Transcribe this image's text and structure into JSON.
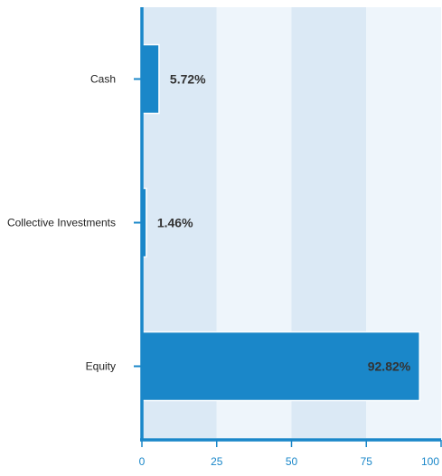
{
  "chart_data": {
    "type": "bar",
    "orientation": "horizontal",
    "categories": [
      "Cash",
      "Collective Investments",
      "Equity"
    ],
    "values": [
      5.72,
      1.46,
      92.82
    ],
    "data_labels": [
      "5.72%",
      "1.46%",
      "92.82%"
    ],
    "xlim": [
      0,
      100
    ],
    "x_ticks": [
      "0",
      "25",
      "50",
      "75",
      "100"
    ],
    "title": "",
    "xlabel": "",
    "ylabel": "",
    "grid": "alternating vertical bands",
    "legend": "none"
  },
  "colors": {
    "bar": "#1a87c9",
    "axis": "#1a87c9",
    "band_dark": "#dbe9f5",
    "band_light": "#eef5fb",
    "tick_text": "#1a87c9",
    "data_label_text": "#333333",
    "category_text": "#222222"
  }
}
